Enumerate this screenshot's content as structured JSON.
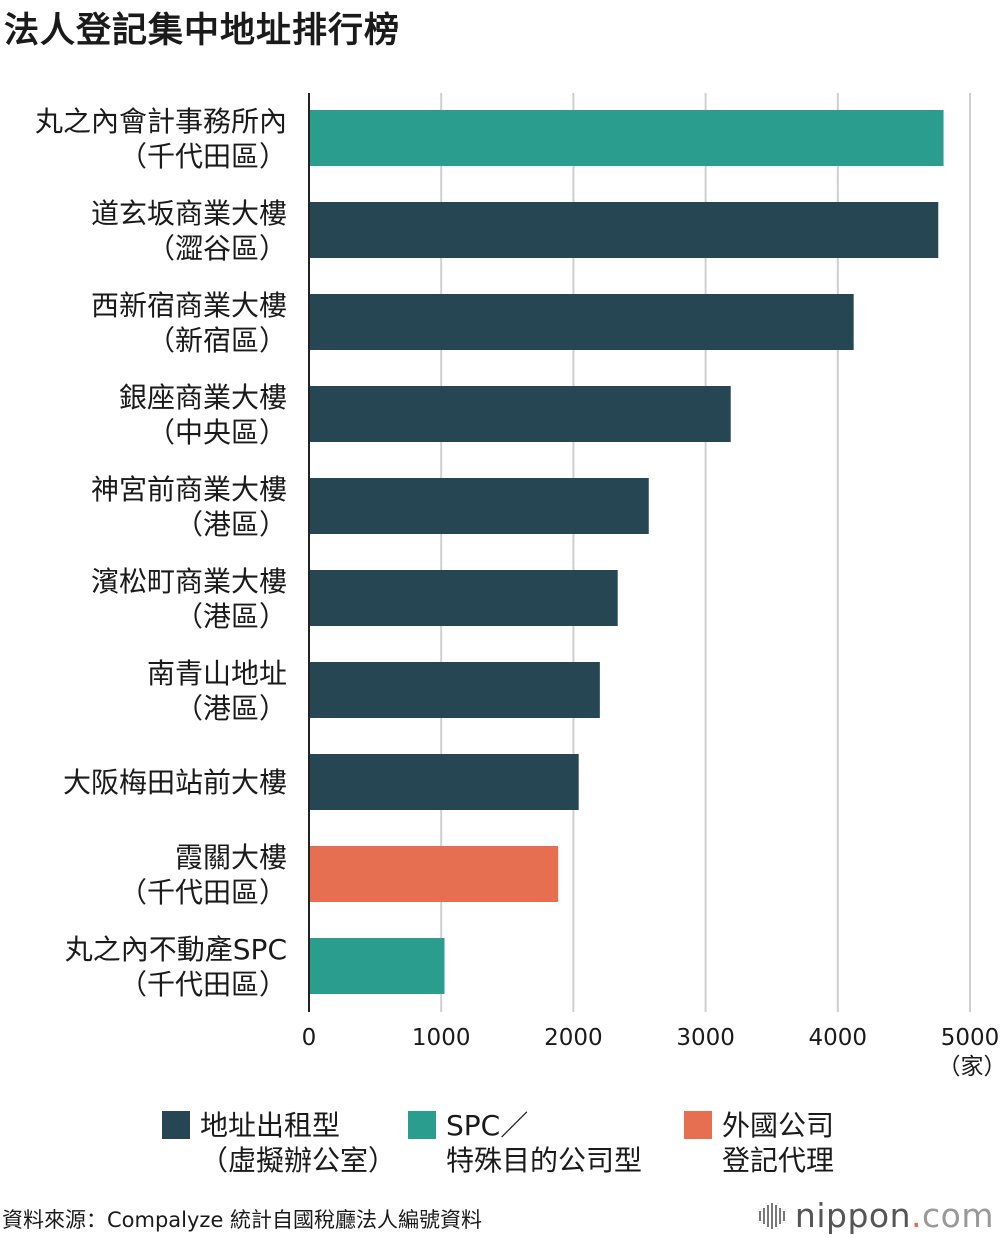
{
  "chart_data": {
    "type": "bar",
    "orientation": "horizontal",
    "title": "法人登記集中地址排行榜",
    "categories": [
      [
        "丸之內會計事務所內",
        "（千代田區）"
      ],
      [
        "道玄坂商業大樓",
        "（澀谷區）"
      ],
      [
        "西新宿商業大樓",
        "（新宿區）"
      ],
      [
        "銀座商業大樓",
        "（中央區）"
      ],
      [
        "神宮前商業大樓",
        "（港區）"
      ],
      [
        "濱松町商業大樓",
        "（港區）"
      ],
      [
        "南青山地址",
        "（港區）"
      ],
      [
        "大阪梅田站前大樓"
      ],
      [
        "霞關大樓",
        "（千代田區）"
      ],
      [
        "丸之內不動產SPC",
        "（千代田區）"
      ]
    ],
    "values": [
      4800,
      4760,
      4120,
      3190,
      2570,
      2335,
      2200,
      2040,
      1885,
      1025
    ],
    "series_index": [
      1,
      0,
      0,
      0,
      0,
      0,
      0,
      0,
      2,
      1
    ],
    "xlim": [
      0,
      5000
    ],
    "xticks": [
      0,
      1000,
      2000,
      3000,
      4000,
      5000
    ],
    "unit": "（家）",
    "grid": "vertical",
    "legend": [
      {
        "label": "地址出租型\n（虛擬辦公室）",
        "color": "#264653"
      },
      {
        "label": "SPC／\n特殊目的公司型",
        "color": "#2a9d8f"
      },
      {
        "label": "外國公司\n登記代理",
        "color": "#e76f51"
      }
    ],
    "legend_placement": "bottom"
  },
  "source": "資料來源：Compalyze 統計自國稅廳法人編號資料",
  "logo": {
    "name": "nippon",
    "dot": ".",
    "suffix": "com"
  }
}
